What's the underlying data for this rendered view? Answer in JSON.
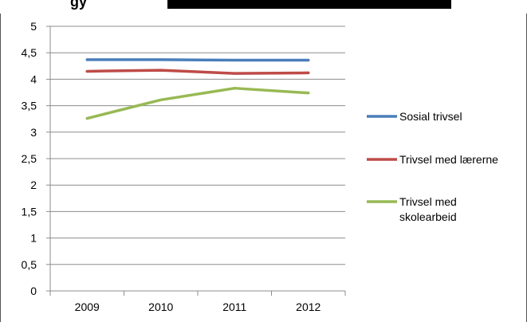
{
  "header_fragment": {
    "text": "gy"
  },
  "chart_data": {
    "type": "line",
    "categories": [
      "2009",
      "2010",
      "2011",
      "2012"
    ],
    "y_ticks": [
      "0",
      "0,5",
      "1",
      "1,5",
      "2",
      "2,5",
      "3",
      "3,5",
      "4",
      "4,5",
      "5"
    ],
    "ylim": [
      0,
      5
    ],
    "grid": true,
    "legend_position": "right",
    "series": [
      {
        "name": "Sosial trivsel",
        "name_lines": [
          "Sosial trivsel"
        ],
        "color": "#4a7ebb",
        "values": [
          4.37,
          4.37,
          4.36,
          4.36
        ]
      },
      {
        "name": "Trivsel med lærerne",
        "name_lines": [
          "Trivsel med lærerne"
        ],
        "color": "#be4b48",
        "values": [
          4.15,
          4.17,
          4.11,
          4.12
        ]
      },
      {
        "name": "Trivsel med skolearbeid",
        "name_lines": [
          "Trivsel med",
          "skolearbeid"
        ],
        "color": "#98b954",
        "values": [
          3.26,
          3.61,
          3.83,
          3.74
        ]
      }
    ]
  }
}
